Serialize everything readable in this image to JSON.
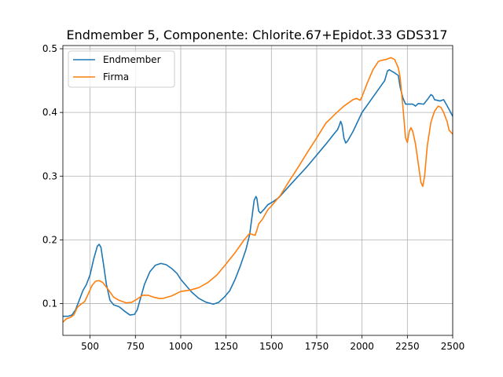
{
  "chart_data": {
    "type": "line",
    "title": "Endmember 5, Componente: Chlorite.67+Epidot.33 GDS317",
    "xlabel": "",
    "ylabel": "",
    "xlim": [
      350,
      2500
    ],
    "ylim": [
      0.05,
      0.505
    ],
    "grid": true,
    "legend_position": "top-left",
    "x_ticks": [
      500,
      750,
      1000,
      1250,
      1500,
      1750,
      2000,
      2250,
      2500
    ],
    "x_tick_labels": [
      "500",
      "750",
      "1000",
      "1250",
      "1500",
      "1750",
      "2000",
      "2250",
      "2500"
    ],
    "y_ticks": [
      0.1,
      0.2,
      0.3,
      0.4,
      0.5
    ],
    "y_tick_labels": [
      "0.1",
      "0.2",
      "0.3",
      "0.4",
      "0.5"
    ],
    "series": [
      {
        "name": "Endmember",
        "color": "#1f77b4",
        "points": [
          [
            350,
            0.08
          ],
          [
            380,
            0.08
          ],
          [
            400,
            0.082
          ],
          [
            420,
            0.09
          ],
          [
            440,
            0.105
          ],
          [
            460,
            0.12
          ],
          [
            480,
            0.13
          ],
          [
            500,
            0.145
          ],
          [
            520,
            0.17
          ],
          [
            540,
            0.19
          ],
          [
            550,
            0.193
          ],
          [
            560,
            0.188
          ],
          [
            575,
            0.16
          ],
          [
            590,
            0.13
          ],
          [
            610,
            0.105
          ],
          [
            630,
            0.098
          ],
          [
            660,
            0.095
          ],
          [
            690,
            0.088
          ],
          [
            720,
            0.082
          ],
          [
            745,
            0.083
          ],
          [
            760,
            0.09
          ],
          [
            780,
            0.11
          ],
          [
            800,
            0.13
          ],
          [
            830,
            0.15
          ],
          [
            860,
            0.16
          ],
          [
            890,
            0.163
          ],
          [
            920,
            0.161
          ],
          [
            950,
            0.155
          ],
          [
            980,
            0.147
          ],
          [
            1000,
            0.138
          ],
          [
            1030,
            0.128
          ],
          [
            1060,
            0.118
          ],
          [
            1100,
            0.108
          ],
          [
            1140,
            0.102
          ],
          [
            1180,
            0.099
          ],
          [
            1210,
            0.102
          ],
          [
            1240,
            0.11
          ],
          [
            1270,
            0.12
          ],
          [
            1300,
            0.138
          ],
          [
            1330,
            0.16
          ],
          [
            1360,
            0.185
          ],
          [
            1380,
            0.208
          ],
          [
            1395,
            0.24
          ],
          [
            1405,
            0.262
          ],
          [
            1415,
            0.268
          ],
          [
            1420,
            0.265
          ],
          [
            1430,
            0.245
          ],
          [
            1440,
            0.242
          ],
          [
            1460,
            0.248
          ],
          [
            1480,
            0.255
          ],
          [
            1510,
            0.26
          ],
          [
            1540,
            0.266
          ],
          [
            1600,
            0.285
          ],
          [
            1700,
            0.316
          ],
          [
            1800,
            0.35
          ],
          [
            1850,
            0.368
          ],
          [
            1865,
            0.373
          ],
          [
            1875,
            0.38
          ],
          [
            1882,
            0.386
          ],
          [
            1890,
            0.38
          ],
          [
            1900,
            0.36
          ],
          [
            1910,
            0.352
          ],
          [
            1920,
            0.355
          ],
          [
            1950,
            0.37
          ],
          [
            2000,
            0.4
          ],
          [
            2050,
            0.42
          ],
          [
            2100,
            0.44
          ],
          [
            2125,
            0.45
          ],
          [
            2140,
            0.465
          ],
          [
            2150,
            0.467
          ],
          [
            2180,
            0.462
          ],
          [
            2200,
            0.458
          ],
          [
            2210,
            0.44
          ],
          [
            2225,
            0.423
          ],
          [
            2240,
            0.413
          ],
          [
            2260,
            0.413
          ],
          [
            2280,
            0.413
          ],
          [
            2295,
            0.41
          ],
          [
            2310,
            0.414
          ],
          [
            2340,
            0.413
          ],
          [
            2360,
            0.42
          ],
          [
            2380,
            0.428
          ],
          [
            2390,
            0.426
          ],
          [
            2400,
            0.42
          ],
          [
            2430,
            0.418
          ],
          [
            2450,
            0.42
          ],
          [
            2470,
            0.41
          ],
          [
            2500,
            0.394
          ]
        ]
      },
      {
        "name": "Firma",
        "color": "#ff7f0e",
        "points": [
          [
            350,
            0.071
          ],
          [
            370,
            0.076
          ],
          [
            390,
            0.078
          ],
          [
            410,
            0.082
          ],
          [
            430,
            0.094
          ],
          [
            450,
            0.099
          ],
          [
            470,
            0.103
          ],
          [
            490,
            0.115
          ],
          [
            510,
            0.128
          ],
          [
            530,
            0.135
          ],
          [
            550,
            0.136
          ],
          [
            570,
            0.133
          ],
          [
            600,
            0.122
          ],
          [
            630,
            0.11
          ],
          [
            660,
            0.105
          ],
          [
            700,
            0.101
          ],
          [
            730,
            0.102
          ],
          [
            760,
            0.107
          ],
          [
            790,
            0.113
          ],
          [
            820,
            0.113
          ],
          [
            850,
            0.11
          ],
          [
            880,
            0.108
          ],
          [
            900,
            0.108
          ],
          [
            950,
            0.112
          ],
          [
            1000,
            0.119
          ],
          [
            1050,
            0.121
          ],
          [
            1100,
            0.125
          ],
          [
            1150,
            0.133
          ],
          [
            1200,
            0.145
          ],
          [
            1250,
            0.162
          ],
          [
            1300,
            0.18
          ],
          [
            1350,
            0.2
          ],
          [
            1380,
            0.21
          ],
          [
            1400,
            0.208
          ],
          [
            1410,
            0.207
          ],
          [
            1420,
            0.215
          ],
          [
            1430,
            0.225
          ],
          [
            1450,
            0.232
          ],
          [
            1480,
            0.247
          ],
          [
            1500,
            0.253
          ],
          [
            1550,
            0.27
          ],
          [
            1600,
            0.293
          ],
          [
            1650,
            0.315
          ],
          [
            1700,
            0.338
          ],
          [
            1750,
            0.36
          ],
          [
            1800,
            0.383
          ],
          [
            1850,
            0.397
          ],
          [
            1900,
            0.41
          ],
          [
            1950,
            0.42
          ],
          [
            1970,
            0.422
          ],
          [
            1990,
            0.419
          ],
          [
            2000,
            0.425
          ],
          [
            2030,
            0.447
          ],
          [
            2060,
            0.467
          ],
          [
            2090,
            0.48
          ],
          [
            2110,
            0.482
          ],
          [
            2130,
            0.483
          ],
          [
            2160,
            0.486
          ],
          [
            2180,
            0.483
          ],
          [
            2200,
            0.47
          ],
          [
            2210,
            0.455
          ],
          [
            2225,
            0.41
          ],
          [
            2240,
            0.36
          ],
          [
            2250,
            0.353
          ],
          [
            2260,
            0.37
          ],
          [
            2270,
            0.376
          ],
          [
            2280,
            0.37
          ],
          [
            2295,
            0.35
          ],
          [
            2310,
            0.32
          ],
          [
            2325,
            0.29
          ],
          [
            2335,
            0.284
          ],
          [
            2345,
            0.3
          ],
          [
            2360,
            0.348
          ],
          [
            2380,
            0.385
          ],
          [
            2400,
            0.402
          ],
          [
            2420,
            0.41
          ],
          [
            2435,
            0.408
          ],
          [
            2450,
            0.4
          ],
          [
            2470,
            0.385
          ],
          [
            2480,
            0.372
          ],
          [
            2500,
            0.366
          ]
        ]
      }
    ]
  }
}
